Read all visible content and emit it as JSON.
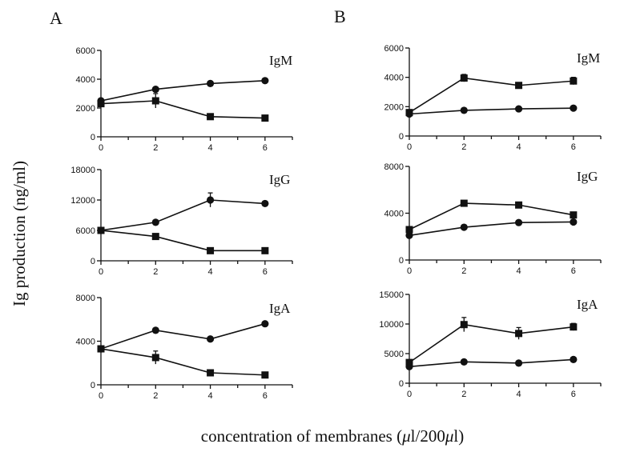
{
  "figure": {
    "panel_labels": [
      "A",
      "B"
    ],
    "ylabel": "Ig production (ng/ml)",
    "xlabel_main": "concentration of membranes (",
    "xlabel_mu1": "μ",
    "xlabel_mid": "l/200",
    "xlabel_mu2": "μ",
    "xlabel_end": "l)"
  },
  "chart_data": [
    {
      "type": "line",
      "panel": "A",
      "label": "IgM",
      "x": [
        0,
        2,
        4,
        6
      ],
      "xticks": [
        0,
        2,
        4,
        6
      ],
      "xlim": [
        0,
        7
      ],
      "yticks": [
        0,
        2000,
        4000,
        6000
      ],
      "ylim": [
        0,
        6000
      ],
      "series": [
        {
          "marker": "circle",
          "values": [
            2500,
            3300,
            3700,
            3900
          ]
        },
        {
          "marker": "square",
          "values": [
            2300,
            2500,
            1400,
            1300
          ],
          "errors": [
            0,
            500,
            0,
            0
          ]
        }
      ]
    },
    {
      "type": "line",
      "panel": "A",
      "label": "IgG",
      "x": [
        0,
        2,
        4,
        6
      ],
      "xticks": [
        0,
        2,
        4,
        6
      ],
      "xlim": [
        0,
        7
      ],
      "yticks": [
        0,
        6000,
        12000,
        18000
      ],
      "ylim": [
        0,
        18000
      ],
      "series": [
        {
          "marker": "circle",
          "values": [
            6000,
            7600,
            12000,
            11300
          ],
          "errors": [
            0,
            0,
            1400,
            0
          ]
        },
        {
          "marker": "square",
          "values": [
            6000,
            4800,
            2000,
            2000
          ]
        }
      ]
    },
    {
      "type": "line",
      "panel": "A",
      "label": "IgA",
      "x": [
        0,
        2,
        4,
        6
      ],
      "xticks": [
        0,
        2,
        4,
        6
      ],
      "xlim": [
        0,
        7
      ],
      "yticks": [
        0,
        4000,
        8000
      ],
      "ylim": [
        0,
        8000
      ],
      "series": [
        {
          "marker": "circle",
          "values": [
            3300,
            5000,
            4200,
            5600
          ]
        },
        {
          "marker": "square",
          "values": [
            3300,
            2500,
            1100,
            900
          ],
          "errors": [
            0,
            600,
            0,
            0
          ]
        }
      ]
    },
    {
      "type": "line",
      "panel": "B",
      "label": "IgM",
      "x": [
        0,
        2,
        4,
        6
      ],
      "xticks": [
        0,
        2,
        4,
        6
      ],
      "xlim": [
        0,
        7
      ],
      "yticks": [
        0,
        2000,
        4000,
        6000
      ],
      "ylim": [
        0,
        6000
      ],
      "series": [
        {
          "marker": "square",
          "values": [
            1600,
            3950,
            3450,
            3750
          ],
          "errors": [
            0,
            250,
            0,
            250
          ]
        },
        {
          "marker": "circle",
          "values": [
            1500,
            1750,
            1850,
            1900
          ]
        }
      ]
    },
    {
      "type": "line",
      "panel": "B",
      "label": "IgG",
      "x": [
        0,
        2,
        4,
        6
      ],
      "xticks": [
        0,
        2,
        4,
        6
      ],
      "xlim": [
        0,
        7
      ],
      "yticks": [
        0,
        4000,
        8000
      ],
      "ylim": [
        0,
        8000
      ],
      "series": [
        {
          "marker": "square",
          "values": [
            2600,
            4850,
            4700,
            3850
          ],
          "errors": [
            0,
            0,
            0,
            200
          ]
        },
        {
          "marker": "circle",
          "values": [
            2100,
            2800,
            3200,
            3250
          ]
        }
      ]
    },
    {
      "type": "line",
      "panel": "B",
      "label": "IgA",
      "x": [
        0,
        2,
        4,
        6
      ],
      "xticks": [
        0,
        2,
        4,
        6
      ],
      "xlim": [
        0,
        7
      ],
      "yticks": [
        0,
        5000,
        10000,
        15000
      ],
      "ylim": [
        0,
        15000
      ],
      "series": [
        {
          "marker": "square",
          "values": [
            3500,
            9900,
            8400,
            9500
          ],
          "errors": [
            0,
            1200,
            1000,
            600
          ]
        },
        {
          "marker": "circle",
          "values": [
            2800,
            3600,
            3400,
            4000
          ]
        }
      ]
    }
  ]
}
